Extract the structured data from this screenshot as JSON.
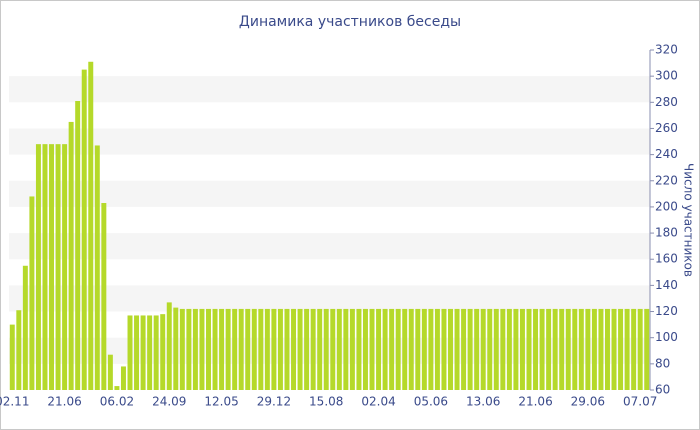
{
  "chart_data": {
    "type": "bar",
    "title": "Динамика участников беседы",
    "y_label": "Число участников",
    "categories": [
      "02.11",
      null,
      null,
      null,
      null,
      null,
      null,
      null,
      "21.06",
      null,
      null,
      null,
      null,
      null,
      null,
      null,
      "06.02",
      null,
      null,
      null,
      null,
      null,
      null,
      null,
      "24.09",
      null,
      null,
      null,
      null,
      null,
      null,
      null,
      "12.05",
      null,
      null,
      null,
      null,
      null,
      null,
      null,
      "29.12",
      null,
      null,
      null,
      null,
      null,
      null,
      null,
      "15.08",
      null,
      null,
      null,
      null,
      null,
      null,
      null,
      "02.04",
      null,
      null,
      null,
      null,
      null,
      null,
      null,
      "05.06",
      null,
      null,
      null,
      null,
      null,
      null,
      null,
      "13.06",
      null,
      null,
      null,
      null,
      null,
      null,
      null,
      "21.06",
      null,
      null,
      null,
      null,
      null,
      null,
      null,
      "29.06",
      null,
      null,
      null,
      null,
      null,
      null,
      null,
      "07.07",
      null
    ],
    "values": [
      110,
      121,
      155,
      208,
      248,
      248,
      248,
      248,
      248,
      265,
      281,
      305,
      311,
      247,
      203,
      87,
      63,
      78,
      117,
      117,
      117,
      117,
      117,
      118,
      127,
      123,
      122,
      122,
      122,
      122,
      122,
      122,
      122,
      122,
      122,
      122,
      122,
      122,
      122,
      122,
      122,
      122,
      122,
      122,
      122,
      122,
      122,
      122,
      122,
      122,
      122,
      122,
      122,
      122,
      122,
      122,
      122,
      122,
      122,
      122,
      122,
      122,
      122,
      122,
      122,
      122,
      122,
      122,
      122,
      122,
      122,
      122,
      122,
      122,
      122,
      122,
      122,
      122,
      122,
      122,
      122,
      122,
      122,
      122,
      122,
      122,
      122,
      122,
      122,
      122,
      122,
      122,
      122,
      122,
      122,
      122,
      122,
      122
    ],
    "color": "#b5d92a",
    "ylim": [
      60,
      320
    ],
    "yticks": [
      60,
      80,
      100,
      120,
      140,
      160,
      180,
      200,
      220,
      240,
      260,
      280,
      300,
      320
    ],
    "grid": true
  }
}
